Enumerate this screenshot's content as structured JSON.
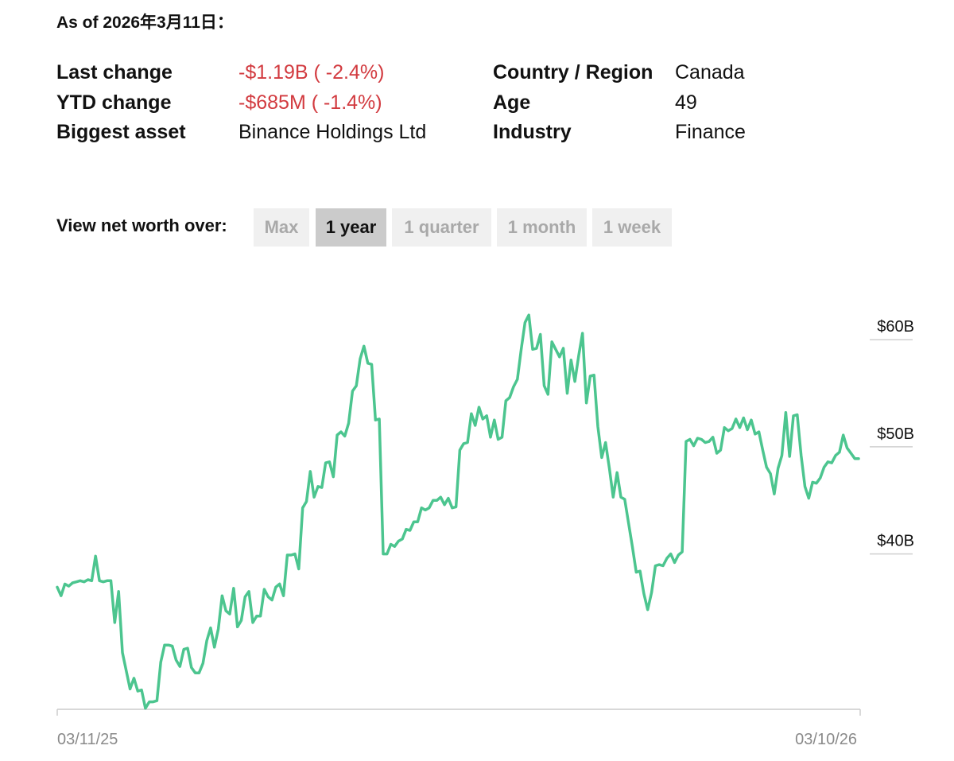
{
  "header": {
    "as_of": "As of 2026年3月11日："
  },
  "stats": {
    "last_change_label": "Last change",
    "last_change_value": "-$1.19B ( -2.4%)",
    "ytd_change_label": "YTD change",
    "ytd_change_value": "-$685M ( -1.4%)",
    "biggest_asset_label": "Biggest asset",
    "biggest_asset_value": "Binance Holdings Ltd",
    "country_label": "Country / Region",
    "country_value": "Canada",
    "age_label": "Age",
    "age_value": "49",
    "industry_label": "Industry",
    "industry_value": "Finance"
  },
  "range_selector": {
    "title": "View net worth over:",
    "options": [
      "Max",
      "1 year",
      "1 quarter",
      "1 month",
      "1 week"
    ],
    "selected": "1 year"
  },
  "colors": {
    "line": "#4cc58f",
    "negative": "#d23a3f"
  },
  "chart_data": {
    "type": "line",
    "title": "",
    "xlabel": "",
    "ylabel": "",
    "y_unit": "$B",
    "ylim": [
      25.5,
      63.8
    ],
    "yticks": [
      {
        "value": 60,
        "label": "$60B"
      },
      {
        "value": 50,
        "label": "$50B"
      },
      {
        "value": 40,
        "label": "$40B"
      }
    ],
    "x_range_labels": [
      "03/11/25",
      "03/10/26"
    ],
    "grid": false,
    "series": [
      {
        "values": [
          36.9,
          36.1,
          37.2,
          37.0,
          37.3,
          37.4,
          37.5,
          37.4,
          37.6,
          37.5,
          39.8,
          37.5,
          37.4,
          37.5,
          37.5,
          33.6,
          36.5,
          30.8,
          29.1,
          27.4,
          28.4,
          27.2,
          27.3,
          25.6,
          26.2,
          26.2,
          26.3,
          29.9,
          31.5,
          31.5,
          31.4,
          30.1,
          29.5,
          31.1,
          31.2,
          29.4,
          28.9,
          28.9,
          29.8,
          31.9,
          33.1,
          31.3,
          33.0,
          36.1,
          34.7,
          34.4,
          36.8,
          33.2,
          33.8,
          36.0,
          36.5,
          33.6,
          34.2,
          34.2,
          36.7,
          36.0,
          35.7,
          36.9,
          37.2,
          36.1,
          39.9,
          39.9,
          40.0,
          38.6,
          44.3,
          44.9,
          47.7,
          45.3,
          46.3,
          46.2,
          48.5,
          48.6,
          47.2,
          51.1,
          51.4,
          51.0,
          52.2,
          55.2,
          55.7,
          58.2,
          59.4,
          57.8,
          57.7,
          52.5,
          52.6,
          40.0,
          40.0,
          40.9,
          40.7,
          41.2,
          41.4,
          42.3,
          42.2,
          43.0,
          43.0,
          44.3,
          44.1,
          44.3,
          45.0,
          45.0,
          45.3,
          44.6,
          45.2,
          44.3,
          44.4,
          49.7,
          50.3,
          50.4,
          53.1,
          52.0,
          53.7,
          52.6,
          52.9,
          50.9,
          52.5,
          50.7,
          50.9,
          54.3,
          54.6,
          55.6,
          56.3,
          59.1,
          61.6,
          62.3,
          59.1,
          59.2,
          60.5,
          55.7,
          54.9,
          59.8,
          59.1,
          58.4,
          59.2,
          55.0,
          58.1,
          56.1,
          58.5,
          60.6,
          54.1,
          56.6,
          56.7,
          51.9,
          49.0,
          50.4,
          48.0,
          45.3,
          47.6,
          45.3,
          45.1,
          42.9,
          40.7,
          38.3,
          38.4,
          36.3,
          34.8,
          36.4,
          38.9,
          39.0,
          38.9,
          39.6,
          40.0,
          39.2,
          39.9,
          40.2,
          50.5,
          50.7,
          50.1,
          50.8,
          50.7,
          50.4,
          50.5,
          50.9,
          49.4,
          49.7,
          51.8,
          51.5,
          51.7,
          52.6,
          51.8,
          52.7,
          51.6,
          52.5,
          51.2,
          51.4,
          49.7,
          48.1,
          47.5,
          45.6,
          48.0,
          49.2,
          53.2,
          49.1,
          52.9,
          53.0,
          49.2,
          46.3,
          45.2,
          46.7,
          46.6,
          47.1,
          48.1,
          48.6,
          48.5,
          49.2,
          49.5,
          51.1,
          49.9,
          49.4,
          48.9,
          48.9
        ]
      }
    ]
  }
}
